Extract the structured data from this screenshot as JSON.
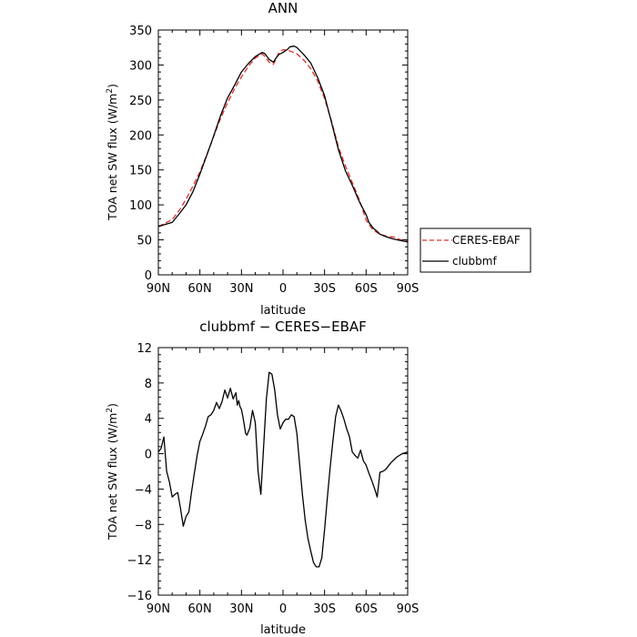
{
  "chart_data": [
    {
      "type": "line",
      "title": "ANN",
      "xlabel": "latitude",
      "ylabel_main": "TOA net SW flux (W/m",
      "ylabel_sup": "2",
      "ylabel_end": ")",
      "xlim": [
        90,
        -90
      ],
      "ylim": [
        0,
        350
      ],
      "x_ticks": [
        90,
        60,
        30,
        0,
        -30,
        -60,
        -90
      ],
      "x_tick_labels": [
        "90N",
        "60N",
        "30N",
        "0",
        "30S",
        "60S",
        "90S"
      ],
      "y_ticks": [
        0,
        50,
        100,
        150,
        200,
        250,
        300,
        350
      ],
      "y_tick_labels": [
        "0",
        "50",
        "100",
        "150",
        "200",
        "250",
        "300",
        "350"
      ],
      "legend": {
        "position": "outside-right"
      },
      "series": [
        {
          "name": "CERES-EBAF",
          "color": "#e0302c",
          "dash": "dashed",
          "x": [
            90,
            85,
            80,
            75,
            70,
            65,
            60,
            55,
            50,
            45,
            40,
            35,
            30,
            25,
            20,
            15,
            13,
            10,
            7,
            5,
            3,
            0,
            -3,
            -5,
            -10,
            -15,
            -20,
            -25,
            -30,
            -35,
            -40,
            -45,
            -50,
            -55,
            -60,
            -65,
            -70,
            -75,
            -80,
            -85,
            -90
          ],
          "y": [
            69,
            74,
            79,
            92,
            108,
            127,
            147,
            172,
            198,
            224,
            246,
            266,
            283,
            298,
            310,
            316,
            312,
            304,
            301,
            308,
            318,
            322,
            321,
            320,
            316,
            307,
            295,
            277,
            252,
            220,
            183,
            156,
            132,
            108,
            78,
            64,
            58,
            55,
            54,
            50,
            49
          ]
        },
        {
          "name": "clubbmf",
          "color": "#000000",
          "dash": "solid",
          "x": [
            90,
            85,
            80,
            75,
            70,
            65,
            60,
            55,
            50,
            45,
            40,
            35,
            30,
            25,
            20,
            15,
            13,
            10,
            7,
            5,
            3,
            0,
            -3,
            -5,
            -8,
            -10,
            -15,
            -20,
            -25,
            -30,
            -35,
            -40,
            -45,
            -50,
            -55,
            -60,
            -62,
            -65,
            -68,
            -70,
            -75,
            -80,
            -85,
            -90
          ],
          "y": [
            69,
            72,
            75,
            87,
            100,
            119,
            144,
            171,
            199,
            228,
            253,
            271,
            290,
            302,
            312,
            318,
            316,
            308,
            304,
            310,
            315,
            318,
            322,
            326,
            327,
            325,
            315,
            303,
            282,
            256,
            218,
            179,
            149,
            128,
            105,
            86,
            75,
            67,
            62,
            58,
            54,
            51,
            49,
            47
          ]
        }
      ]
    },
    {
      "type": "line",
      "title": "clubbmf − CERES−EBAF",
      "xlabel": "latitude",
      "ylabel_main": "TOA net SW flux (W/m",
      "ylabel_sup": "2",
      "ylabel_end": ")",
      "xlim": [
        90,
        -90
      ],
      "ylim": [
        -16,
        12
      ],
      "x_ticks": [
        90,
        60,
        30,
        0,
        -30,
        -60,
        -90
      ],
      "x_tick_labels": [
        "90N",
        "60N",
        "30N",
        "0",
        "30S",
        "60S",
        "90S"
      ],
      "y_ticks": [
        -16,
        -12,
        -8,
        -4,
        0,
        4,
        8,
        12
      ],
      "y_tick_labels": [
        "−16",
        "−12",
        "−8",
        "−4",
        "0",
        "4",
        "8",
        "12"
      ],
      "series": [
        {
          "color": "#000000",
          "dash": "solid",
          "x": [
            90,
            88,
            86,
            84,
            82,
            80,
            78,
            76,
            74,
            72,
            70,
            68,
            66,
            64,
            62,
            60,
            58,
            56,
            54,
            52,
            50,
            48,
            46,
            44,
            42,
            40,
            38,
            36,
            34,
            33,
            32,
            31,
            30,
            29,
            28,
            27,
            26,
            24,
            22,
            20,
            18,
            16,
            14,
            12,
            10,
            8,
            6,
            4,
            2,
            0,
            -2,
            -4,
            -6,
            -8,
            -10,
            -12,
            -14,
            -16,
            -18,
            -20,
            -22,
            -24,
            -26,
            -28,
            -30,
            -32,
            -34,
            -36,
            -38,
            -40,
            -42,
            -44,
            -46,
            -48,
            -50,
            -52,
            -54,
            -56,
            -58,
            -60,
            -62,
            -64,
            -66,
            -68,
            -70,
            -72,
            -74,
            -76,
            -78,
            -80,
            -82,
            -84,
            -86,
            -88,
            -90
          ],
          "y": [
            0.2,
            0.6,
            1.9,
            -2.0,
            -3.2,
            -4.9,
            -4.6,
            -4.4,
            -6.2,
            -8.2,
            -7.1,
            -6.6,
            -4.3,
            -2.2,
            -0.2,
            1.4,
            2.2,
            3.1,
            4.2,
            4.4,
            4.9,
            5.8,
            5.1,
            5.9,
            7.2,
            6.3,
            7.4,
            6.2,
            6.9,
            5.5,
            6.0,
            5.3,
            5.0,
            4.2,
            3.3,
            2.3,
            2.1,
            2.9,
            4.9,
            3.5,
            -2.0,
            -4.6,
            0.8,
            6.2,
            9.2,
            9.0,
            7.2,
            4.4,
            2.8,
            3.5,
            3.9,
            3.9,
            4.4,
            4.2,
            2.3,
            -1.2,
            -4.6,
            -7.5,
            -9.6,
            -11.0,
            -12.3,
            -12.8,
            -12.8,
            -11.8,
            -8.6,
            -5.0,
            -1.6,
            1.4,
            4.2,
            5.5,
            4.8,
            3.9,
            2.8,
            1.9,
            0.2,
            -0.2,
            -0.5,
            0.4,
            -0.8,
            -1.3,
            -2.2,
            -3.0,
            -3.9,
            -4.9,
            -2.1,
            -2.0,
            -1.8,
            -1.4,
            -1.0,
            -0.7,
            -0.4,
            -0.2,
            0.0,
            0.1,
            0.2
          ]
        }
      ]
    }
  ]
}
